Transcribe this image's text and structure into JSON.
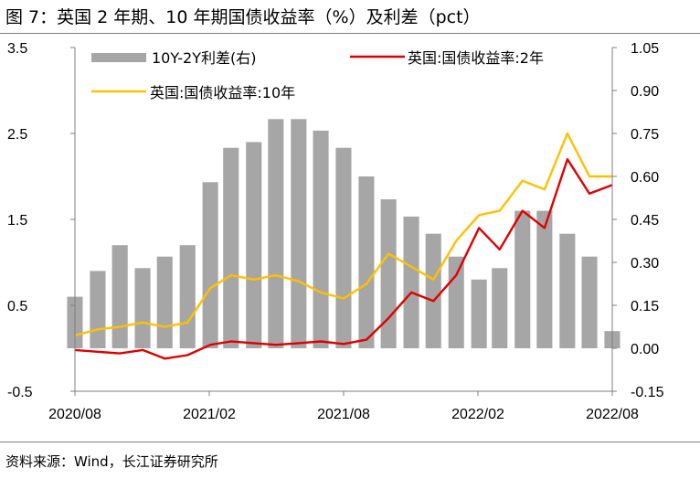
{
  "title": "图 7：英国 2 年期、10 年期国债收益率（%）及利差（pct）",
  "source": "资料来源：Wind，长江证券研究所",
  "colors": {
    "spread": "#a6a6a6",
    "y2": "#e00000",
    "y10": "#ffc000"
  },
  "chart_data": {
    "type": "line",
    "x_start": "2020-08",
    "x_end": "2022-08",
    "x_tick_labels": [
      "2020/08",
      "2021/02",
      "2021/08",
      "2022/02",
      "2022/08"
    ],
    "y_left": {
      "range": [
        -0.5,
        3.5
      ],
      "ticks": [
        "3.5",
        "2.5",
        "1.5",
        "0.5",
        "-0.5"
      ]
    },
    "y_right": {
      "range": [
        -0.15,
        1.05
      ],
      "ticks": [
        "1.05",
        "0.90",
        "0.75",
        "0.60",
        "0.45",
        "0.30",
        "0.15",
        "0.00",
        "-0.15"
      ]
    },
    "legend_placement": "top",
    "series": [
      {
        "name": "10Y-2Y利差(右)",
        "type": "bar",
        "axis": "right",
        "x": [
          "2020-08-01",
          "2020-09-01",
          "2020-10-01",
          "2020-11-01",
          "2020-12-01",
          "2021-01-01",
          "2021-02-01",
          "2021-03-01",
          "2021-04-01",
          "2021-05-01",
          "2021-06-01",
          "2021-07-01",
          "2021-08-01",
          "2021-09-01",
          "2021-10-01",
          "2021-11-01",
          "2021-12-01",
          "2022-01-01",
          "2022-02-01",
          "2022-03-01",
          "2022-04-01",
          "2022-05-01",
          "2022-06-01",
          "2022-07-01",
          "2022-08-01"
        ],
        "values": [
          0.18,
          0.27,
          0.36,
          0.28,
          0.32,
          0.36,
          0.58,
          0.7,
          0.72,
          0.8,
          0.8,
          0.76,
          0.7,
          0.6,
          0.52,
          0.46,
          0.4,
          0.32,
          0.24,
          0.28,
          0.48,
          0.48,
          0.4,
          0.32,
          0.06
        ]
      },
      {
        "name": "英国:国债收益率:2年",
        "type": "line",
        "axis": "left",
        "x": [
          "2020-08-01",
          "2020-09-01",
          "2020-10-01",
          "2020-11-01",
          "2020-12-01",
          "2021-01-01",
          "2021-02-01",
          "2021-03-01",
          "2021-04-01",
          "2021-05-01",
          "2021-06-01",
          "2021-07-01",
          "2021-08-01",
          "2021-09-01",
          "2021-10-01",
          "2021-11-01",
          "2021-12-01",
          "2022-01-01",
          "2022-02-01",
          "2022-03-01",
          "2022-04-01",
          "2022-05-01",
          "2022-06-01",
          "2022-07-01",
          "2022-08-01"
        ],
        "values": [
          -0.02,
          -0.04,
          -0.06,
          -0.02,
          -0.12,
          -0.08,
          0.04,
          0.08,
          0.06,
          0.04,
          0.06,
          0.08,
          0.05,
          0.1,
          0.35,
          0.65,
          0.55,
          0.85,
          1.4,
          1.15,
          1.6,
          1.4,
          2.2,
          1.8,
          1.9
        ]
      },
      {
        "name": "英国:国债收益率:10年",
        "type": "line",
        "axis": "left",
        "x": [
          "2020-08-01",
          "2020-09-01",
          "2020-10-01",
          "2020-11-01",
          "2020-12-01",
          "2021-01-01",
          "2021-02-01",
          "2021-03-01",
          "2021-04-01",
          "2021-05-01",
          "2021-06-01",
          "2021-07-01",
          "2021-08-01",
          "2021-09-01",
          "2021-10-01",
          "2021-11-01",
          "2021-12-01",
          "2022-01-01",
          "2022-02-01",
          "2022-03-01",
          "2022-04-01",
          "2022-05-01",
          "2022-06-01",
          "2022-07-01",
          "2022-08-01"
        ],
        "values": [
          0.15,
          0.22,
          0.25,
          0.3,
          0.25,
          0.3,
          0.7,
          0.85,
          0.8,
          0.85,
          0.78,
          0.65,
          0.58,
          0.75,
          1.1,
          0.95,
          0.8,
          1.25,
          1.55,
          1.6,
          1.95,
          1.85,
          2.5,
          2.0,
          2.0
        ]
      }
    ]
  }
}
